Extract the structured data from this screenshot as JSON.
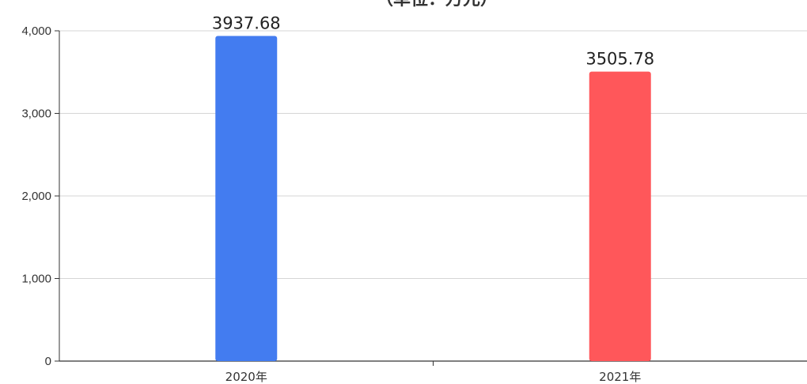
{
  "chart_data": {
    "type": "bar",
    "title": "（单位：万元）",
    "categories": [
      "2020年",
      "2021年"
    ],
    "values": [
      3937.68,
      3505.78
    ],
    "data_labels": [
      "3937.68",
      "3505.78"
    ],
    "bar_colors": [
      "#437CF0",
      "#FF575A"
    ],
    "y_ticks": [
      0,
      1000,
      2000,
      3000,
      4000
    ],
    "y_tick_labels": [
      "0",
      "1,000",
      "2,000",
      "3,000",
      "4,000"
    ],
    "ylim": [
      0,
      4000
    ],
    "grid": true,
    "legend": "none"
  }
}
